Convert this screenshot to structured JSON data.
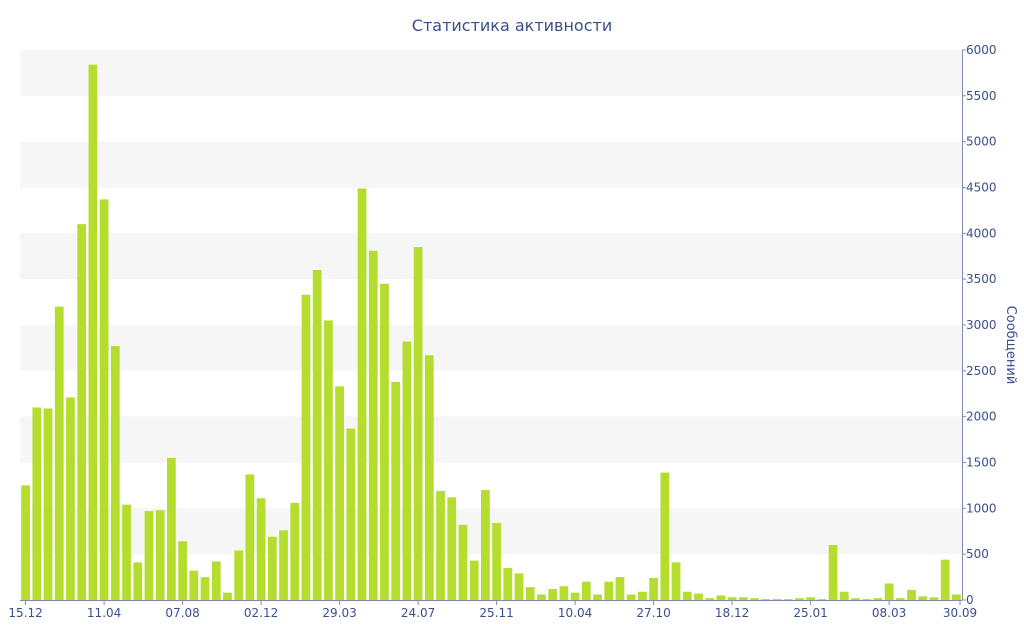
{
  "colors": {
    "bar": "#b5dd2e",
    "text": "#3b4f8c",
    "band": "#f6f6f6",
    "axis": "#7f8ab0"
  },
  "chart_data": {
    "type": "bar",
    "title": "Статистика активности",
    "ylabel": "Сообщений",
    "xlabel": "",
    "ylim": [
      0,
      6000
    ],
    "yticks": [
      0,
      500,
      1000,
      1500,
      2000,
      2500,
      3000,
      3500,
      4000,
      4500,
      5000,
      5500,
      6000
    ],
    "y_axis_side": "right",
    "grid": "alternating horizontal bands",
    "x_tick_labels": [
      {
        "label": "15.12",
        "index": 0
      },
      {
        "label": "11.04",
        "index": 7
      },
      {
        "label": "07.08",
        "index": 14
      },
      {
        "label": "02.12",
        "index": 21
      },
      {
        "label": "29.03",
        "index": 28
      },
      {
        "label": "24.07",
        "index": 35
      },
      {
        "label": "25.11",
        "index": 42
      },
      {
        "label": "10.04",
        "index": 49
      },
      {
        "label": "27.10",
        "index": 56
      },
      {
        "label": "18.12",
        "index": 63
      },
      {
        "label": "25.01",
        "index": 70
      },
      {
        "label": "08.03",
        "index": 77
      },
      {
        "label": "30.09",
        "index": 84
      }
    ],
    "values": [
      1250,
      2100,
      2090,
      3200,
      2210,
      4100,
      5840,
      4370,
      2770,
      1040,
      410,
      970,
      980,
      1550,
      640,
      320,
      250,
      420,
      80,
      540,
      1370,
      1110,
      690,
      760,
      1060,
      3330,
      3600,
      3050,
      2330,
      1870,
      4490,
      3810,
      3450,
      2380,
      2820,
      3850,
      2670,
      1190,
      1120,
      820,
      430,
      1200,
      840,
      350,
      290,
      140,
      60,
      120,
      150,
      80,
      200,
      60,
      200,
      250,
      60,
      90,
      240,
      1390,
      410,
      90,
      70,
      20,
      50,
      30,
      30,
      20,
      10,
      10,
      10,
      20,
      30,
      10,
      600,
      90,
      20,
      10,
      20,
      180,
      20,
      110,
      40,
      30,
      440,
      60
    ]
  }
}
